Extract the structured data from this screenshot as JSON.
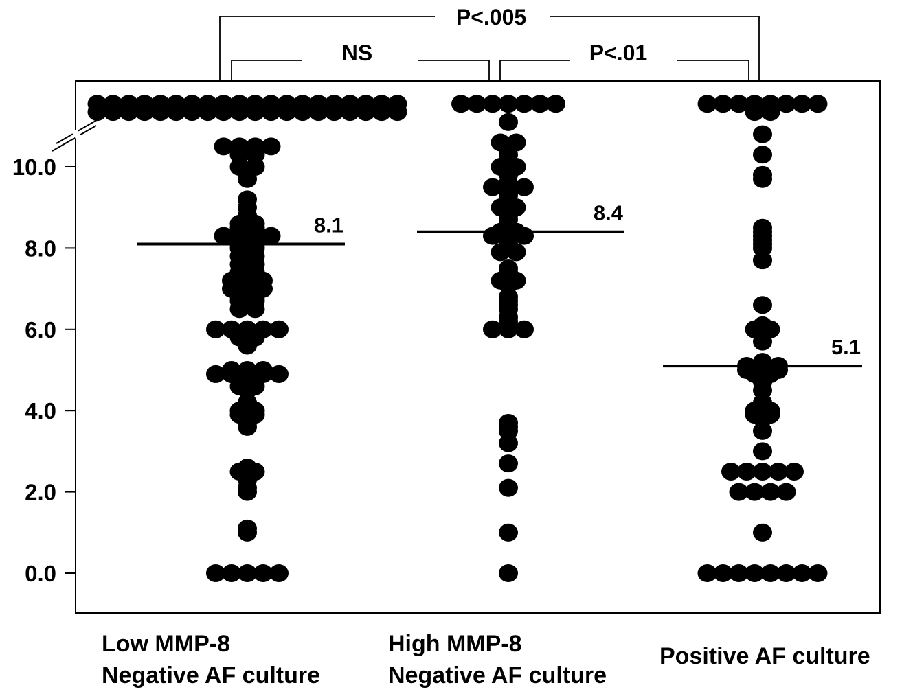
{
  "chart_data": {
    "type": "scatter",
    "title": "",
    "xlabel": "",
    "ylabel": "",
    "ylim": [
      -1.1,
      12.2
    ],
    "y_ticks": [
      "0.0",
      "2.0",
      "4.0",
      "6.0",
      "8.0",
      "10.0"
    ],
    "y_tick_values": [
      0,
      2,
      4,
      6,
      8,
      10
    ],
    "axis_break": "above 10.0 (broken axis)",
    "categories": [
      {
        "line1": "Low MMP-8",
        "line2": "Negative AF culture"
      },
      {
        "line1": "High MMP-8",
        "line2": "Negative AF culture"
      },
      {
        "line1": "Positive AF culture",
        "line2": ""
      }
    ],
    "series": [
      {
        "values": [
          11.35,
          11.35,
          11.35,
          11.35,
          11.35,
          11.35,
          11.35,
          11.35,
          11.35,
          11.35,
          11.35,
          11.35,
          11.35,
          11.35,
          11.35,
          11.35,
          11.35,
          11.35,
          11.35,
          11.35,
          11.55,
          11.55,
          11.55,
          11.55,
          11.55,
          11.55,
          11.55,
          11.55,
          11.55,
          11.55,
          11.55,
          11.55,
          11.55,
          11.55,
          11.55,
          11.55,
          11.55,
          11.55,
          11.55,
          11.55,
          10.5,
          10.5,
          10.5,
          10.5,
          10.3,
          10.3,
          10.0,
          10.0,
          9.7,
          9.2,
          9.0,
          8.8,
          8.6,
          8.6,
          8.5,
          8.5,
          8.4,
          8.4,
          8.3,
          8.3,
          8.3,
          8.3,
          8.2,
          8.2,
          8.1,
          8.1,
          8.0,
          8.0,
          7.8,
          7.8,
          7.6,
          7.6,
          7.5,
          7.4,
          7.4,
          7.3,
          7.2,
          7.2,
          7.2,
          7.1,
          7.1,
          7.0,
          7.0,
          7.0,
          6.9,
          6.9,
          6.8,
          6.8,
          6.7,
          6.7,
          6.6,
          6.5,
          6.5,
          6.0,
          6.0,
          6.0,
          6.0,
          6.0,
          5.9,
          5.8,
          5.8,
          5.6,
          5.0,
          5.0,
          5.0,
          4.9,
          4.9,
          4.9,
          4.9,
          4.9,
          4.8,
          4.7,
          4.6,
          4.6,
          4.5,
          4.2,
          4.0,
          4.0,
          3.9,
          3.9,
          3.7,
          3.6,
          2.6,
          2.5,
          2.5,
          2.3,
          2.1,
          2.0,
          1.1,
          1.0,
          0,
          0,
          0,
          0,
          0
        ],
        "median": 8.1,
        "median_label": "8.1"
      },
      {
        "values": [
          11.55,
          11.55,
          11.55,
          11.55,
          11.55,
          11.55,
          11.55,
          11.1,
          10.6,
          10.6,
          10.3,
          10.0,
          10.0,
          9.9,
          9.8,
          9.6,
          9.5,
          9.5,
          9.5,
          9.4,
          9.3,
          9.1,
          9.0,
          9.0,
          8.9,
          8.8,
          8.7,
          8.4,
          8.4,
          8.3,
          8.3,
          8.3,
          8.2,
          8.1,
          8.0,
          7.9,
          7.9,
          7.5,
          7.4,
          7.2,
          7.2,
          7.1,
          6.8,
          6.7,
          6.6,
          6.5,
          6.3,
          6.2,
          6.0,
          6.0,
          6.0,
          3.7,
          3.6,
          3.5,
          3.2,
          2.7,
          2.1,
          1.0,
          0
        ],
        "median": 8.4,
        "median_label": "8.4"
      },
      {
        "values": [
          11.55,
          11.55,
          11.55,
          11.55,
          11.55,
          11.55,
          11.55,
          11.55,
          11.35,
          11.35,
          10.8,
          10.3,
          9.8,
          9.7,
          8.5,
          8.4,
          8.3,
          8.2,
          8.1,
          8.0,
          7.7,
          6.6,
          6.1,
          6.0,
          6.0,
          5.7,
          5.2,
          5.1,
          5.1,
          5.1,
          5.0,
          5.0,
          5.0,
          4.9,
          4.9,
          4.7,
          4.5,
          4.2,
          4.0,
          4.0,
          3.9,
          3.9,
          3.8,
          3.5,
          3.0,
          2.5,
          2.5,
          2.5,
          2.5,
          2.5,
          2.0,
          2.0,
          2.0,
          2.0,
          1.0,
          0,
          0,
          0,
          0,
          0,
          0,
          0,
          0
        ],
        "median": 5.1,
        "median_label": "5.1"
      }
    ],
    "comparisons": [
      {
        "between": [
          0,
          1
        ],
        "label": "NS"
      },
      {
        "between": [
          1,
          2
        ],
        "label": "P<.01"
      },
      {
        "between": [
          0,
          2
        ],
        "label": "P<.005"
      }
    ]
  }
}
